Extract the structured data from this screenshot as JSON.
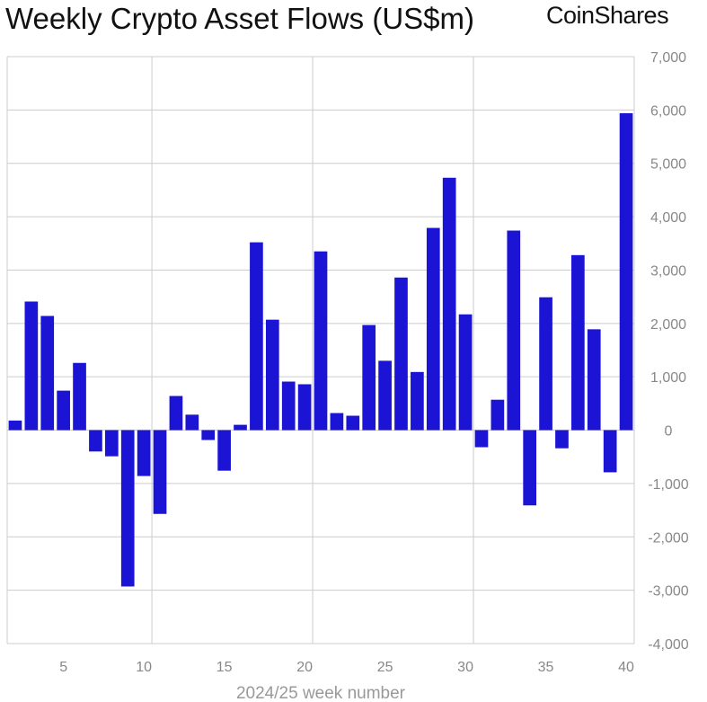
{
  "chart_data": {
    "type": "bar",
    "title": "Weekly Crypto Asset Flows (US$m)",
    "logo": "CoinShares",
    "xlabel": "2024/25 week number",
    "ylabel": "",
    "x": [
      2,
      3,
      4,
      5,
      6,
      7,
      8,
      9,
      10,
      11,
      12,
      13,
      14,
      15,
      16,
      17,
      18,
      19,
      20,
      21,
      22,
      23,
      24,
      25,
      26,
      27,
      28,
      29,
      30,
      31,
      32,
      33,
      34,
      35,
      36,
      37,
      38,
      39,
      40
    ],
    "values": [
      180,
      2410,
      2140,
      740,
      1260,
      -400,
      -490,
      -2930,
      -860,
      -1570,
      640,
      290,
      -185,
      -760,
      100,
      3520,
      2070,
      910,
      860,
      3350,
      320,
      270,
      1970,
      1300,
      2860,
      1090,
      3790,
      4730,
      2170,
      -320,
      570,
      3740,
      -1410,
      2490,
      -340,
      3280,
      1890,
      -790,
      5940
    ],
    "xticks": [
      "5",
      "10",
      "15",
      "20",
      "25",
      "30",
      "35",
      "40"
    ],
    "xtick_values": [
      5,
      10,
      15,
      20,
      25,
      30,
      35,
      40
    ],
    "yticks": [
      "7,000",
      "6,000",
      "5,000",
      "4,000",
      "3,000",
      "2,000",
      "1,000",
      "0",
      "-1,000",
      "-2,000",
      "-3,000",
      "-4,000"
    ],
    "ytick_values": [
      7000,
      6000,
      5000,
      4000,
      3000,
      2000,
      1000,
      0,
      -1000,
      -2000,
      -3000,
      -4000
    ],
    "ylim": [
      -4000,
      7000
    ],
    "xlim": [
      1.5,
      40.5
    ],
    "grid": true,
    "bar_color": "#1c14d4",
    "grid_color": "#cccccc"
  }
}
